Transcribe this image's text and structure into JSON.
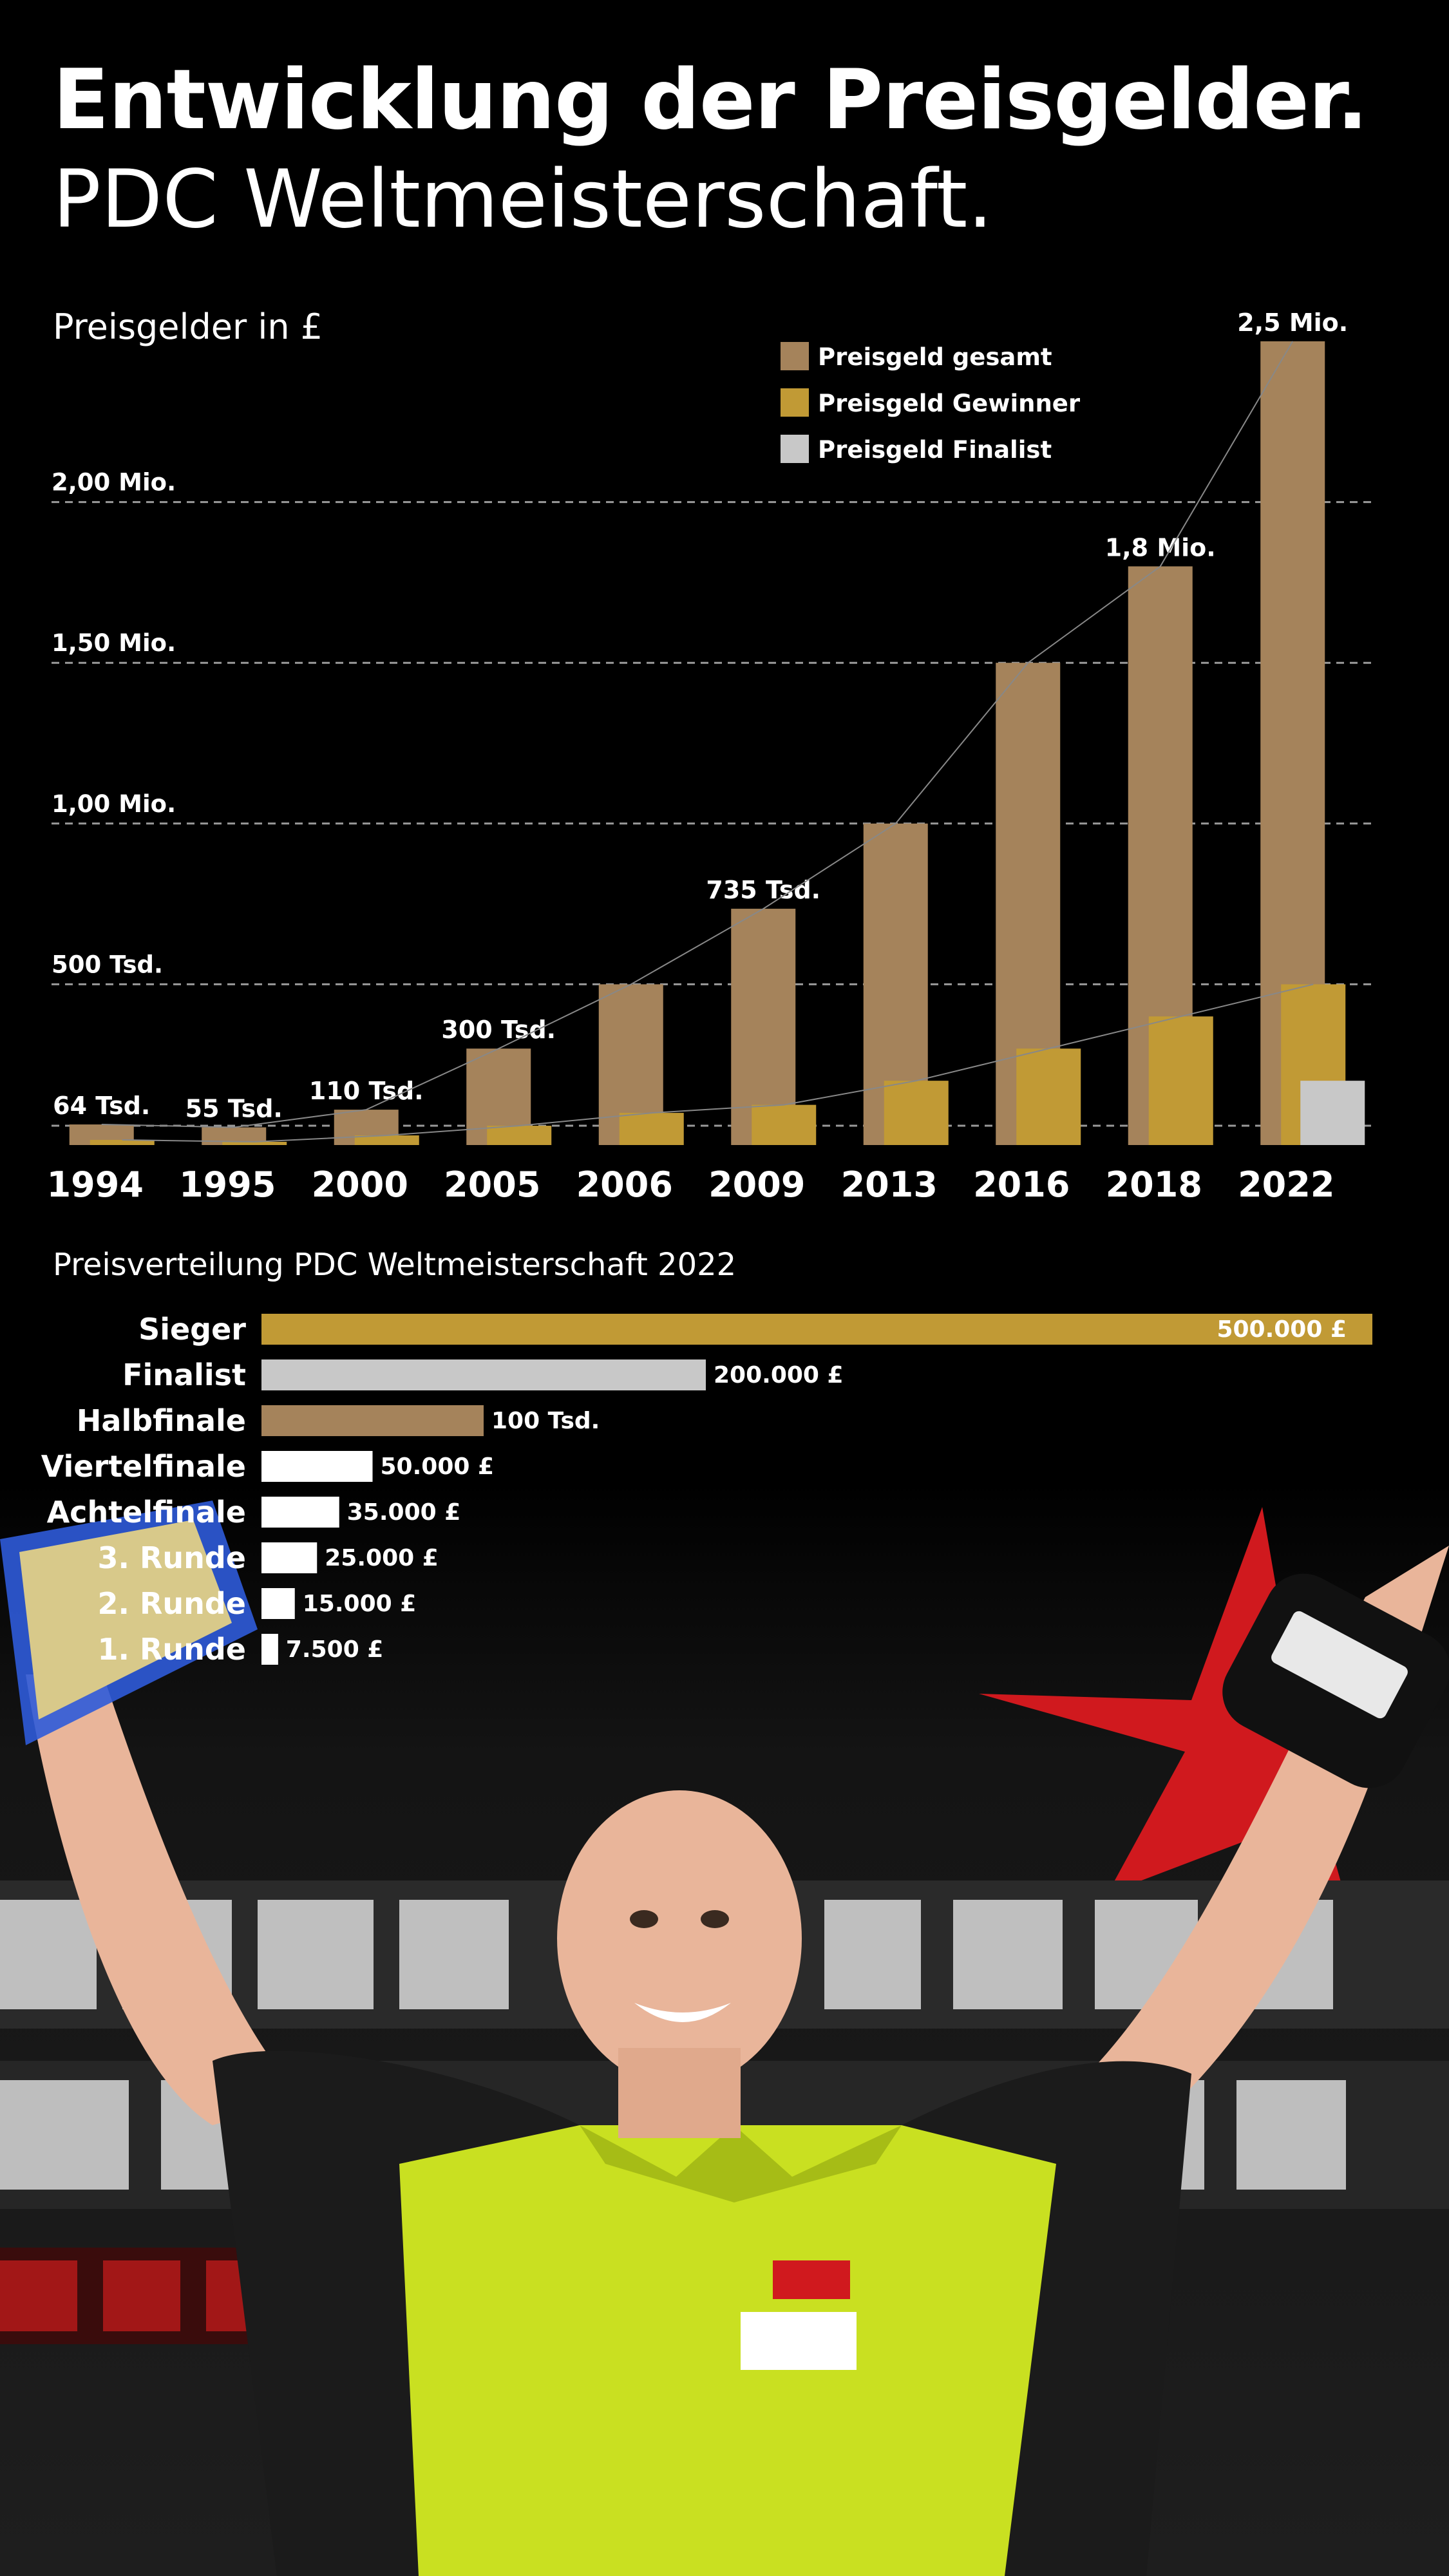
{
  "title": "Entwicklung der Preisgelder.",
  "subtitle": "PDC Weltmeisterschaft.",
  "colors": {
    "total": "#a5835b",
    "winner": "#c19a35",
    "finalist": "#c8c8c8",
    "background": "#000000"
  },
  "chart_data": [
    {
      "type": "bar",
      "ylabel": "Preisgelder in £",
      "ylim": [
        0,
        2500000
      ],
      "yticks": [
        {
          "value": 500000,
          "label": "500 Tsd."
        },
        {
          "value": 1000000,
          "label": "1,00 Mio."
        },
        {
          "value": 1500000,
          "label": "1,50 Mio."
        },
        {
          "value": 2000000,
          "label": "2,00 Mio."
        }
      ],
      "grid": true,
      "legend_position": "top-right",
      "categories": [
        "1994",
        "1995",
        "2000",
        "2005",
        "2006",
        "2009",
        "2013",
        "2016",
        "2018",
        "2022"
      ],
      "series": [
        {
          "name": "Preisgeld gesamt",
          "values": [
            64000,
            55000,
            110000,
            300000,
            500000,
            735000,
            1000000,
            1500000,
            1800000,
            2500000
          ]
        },
        {
          "name": "Preisgeld Gewinner",
          "values": [
            16000,
            10000,
            30000,
            60000,
            100000,
            125000,
            200000,
            300000,
            400000,
            500000
          ]
        },
        {
          "name": "Preisgeld Finalist",
          "values": [
            null,
            null,
            null,
            null,
            null,
            null,
            null,
            null,
            null,
            200000
          ]
        }
      ],
      "data_labels": [
        "64 Tsd.",
        "55 Tsd.",
        "110 Tsd.",
        "300 Tsd.",
        "",
        "735 Tsd.",
        "",
        "",
        "1,8 Mio.",
        "2,5 Mio."
      ]
    },
    {
      "type": "bar",
      "orientation": "horizontal",
      "title": "Preisverteilung PDC Weltmeisterschaft 2022",
      "xlim": [
        0,
        500000
      ],
      "categories": [
        "Sieger",
        "Finalist",
        "Halbfinale",
        "Viertelfinale",
        "Achtelfinale",
        "3. Runde",
        "2. Runde",
        "1. Runde"
      ],
      "values": [
        500000,
        200000,
        100000,
        50000,
        35000,
        25000,
        15000,
        7500
      ],
      "value_labels": [
        "500.000 £",
        "200.000 £",
        "100 Tsd.",
        "50.000 £",
        "35.000 £",
        "25.000 £",
        "15.000 £",
        "7.500 £"
      ],
      "bar_colors": [
        "#c19a35",
        "#c8c8c8",
        "#a5835b",
        "#ffffff",
        "#ffffff",
        "#ffffff",
        "#ffffff",
        "#ffffff"
      ]
    }
  ],
  "photo": {
    "icons": [
      "player-photo-icon",
      "star-icon",
      "trophy-icon",
      "bag-icon"
    ],
    "colors": {
      "shirt": "#c9e021",
      "star": "#d0191e",
      "backdrop": "#1a1a1a",
      "banner_text": "#d9d9d9",
      "skin": "#e9b59a"
    }
  }
}
